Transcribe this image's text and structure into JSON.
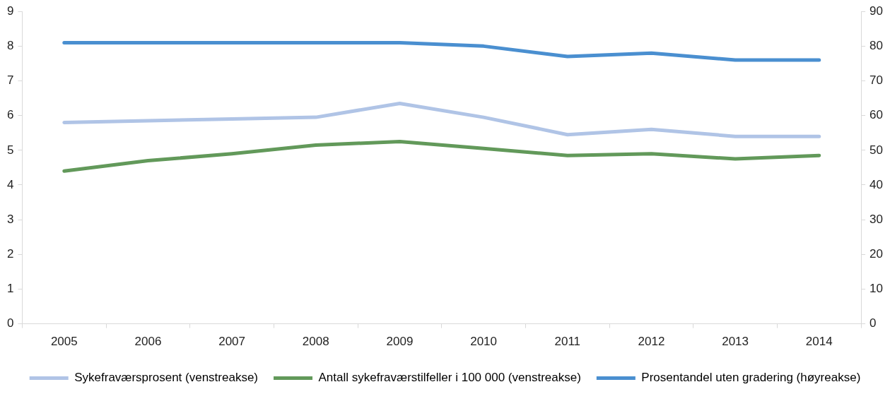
{
  "chart_data": {
    "type": "line",
    "categories": [
      "2005",
      "2006",
      "2007",
      "2008",
      "2009",
      "2010",
      "2011",
      "2012",
      "2013",
      "2014"
    ],
    "series": [
      {
        "name": "Sykefraværsprosent (venstreakse)",
        "color": "#b0c4e6",
        "values": [
          5.8,
          5.85,
          5.9,
          5.95,
          6.35,
          5.95,
          5.45,
          5.6,
          5.4,
          5.4
        ]
      },
      {
        "name": "Antall sykefraværstilfeller i 100 000 (venstreakse)",
        "color": "#62995a",
        "values": [
          4.4,
          4.7,
          4.9,
          5.15,
          5.25,
          5.05,
          4.85,
          4.9,
          4.75,
          4.85
        ]
      },
      {
        "name": "Prosentandel uten gradering (høyreakse)",
        "color": "#4a8fd0",
        "axis": "y2",
        "values": [
          81,
          81,
          81,
          81,
          81,
          80,
          77,
          78,
          76,
          76
        ]
      }
    ],
    "ylim": [
      0,
      9
    ],
    "yticks": [
      0,
      1,
      2,
      3,
      4,
      5,
      6,
      7,
      8,
      9
    ],
    "y2lim": [
      0,
      90
    ],
    "y2ticks": [
      0,
      10,
      20,
      30,
      40,
      50,
      60,
      70,
      80,
      90
    ],
    "grid": false,
    "legend": "bottom",
    "marker": "none",
    "line_style": "solid"
  }
}
